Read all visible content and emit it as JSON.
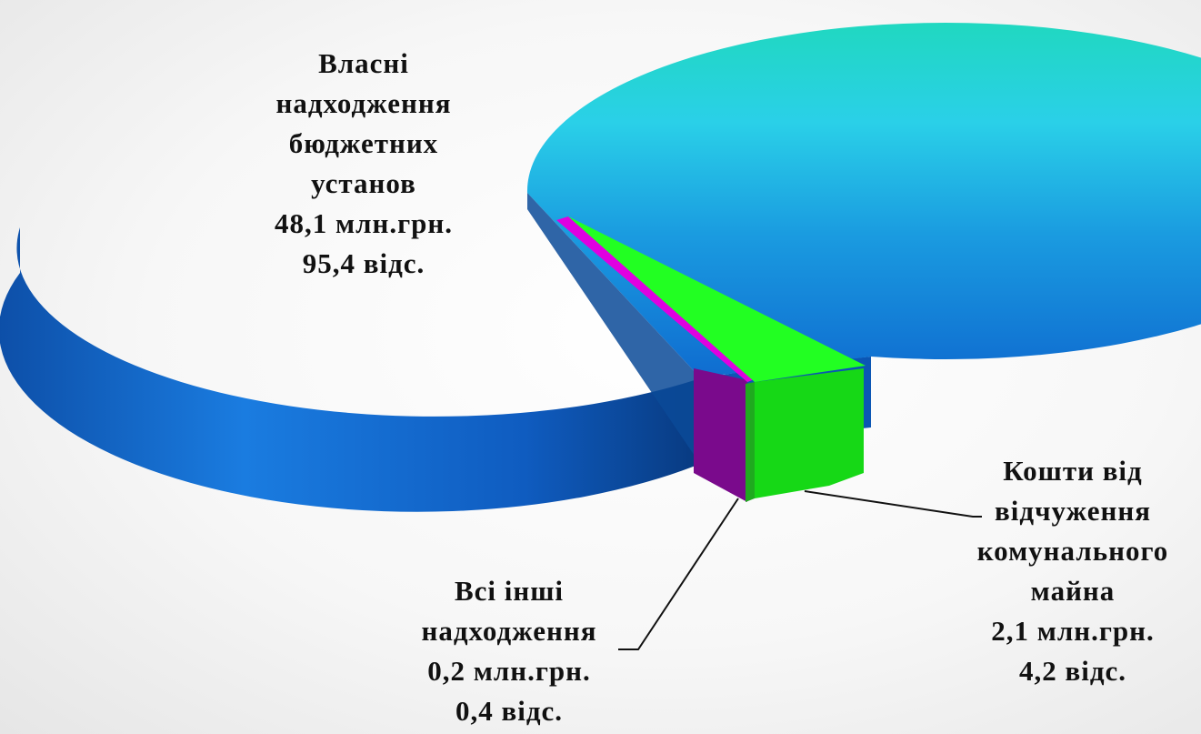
{
  "chart_data": {
    "type": "pie",
    "variant": "3d-exploded",
    "slices": [
      {
        "key": "main",
        "value": 95.4,
        "amount": 48.1,
        "color": "#1a8fd6",
        "label": [
          "Власні",
          "надходження",
          "бюджетних",
          "установ",
          "48,1 млн.грн.",
          "95,4 відс."
        ]
      },
      {
        "key": "other",
        "value": 0.4,
        "amount": 0.2,
        "color": "#e000e0",
        "label": [
          "Всі інші",
          "надходження",
          "0,2 млн.грн.",
          "0,4 відс."
        ]
      },
      {
        "key": "sale",
        "value": 4.2,
        "amount": 2.1,
        "color": "#22ee22",
        "label": [
          "Кошти від",
          "відчуження",
          "комунального",
          "майна",
          "2,1 млн.грн.",
          "4,2 відс."
        ]
      }
    ]
  }
}
